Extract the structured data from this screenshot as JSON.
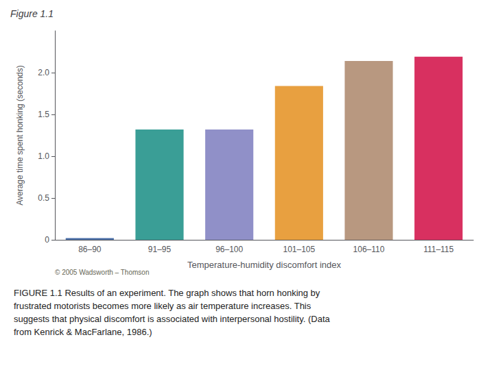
{
  "chart_data": {
    "type": "bar",
    "title": "Figure 1.1",
    "categories": [
      "86–90",
      "91–95",
      "96–100",
      "101–105",
      "106–110",
      "111–115"
    ],
    "values": [
      0.02,
      1.32,
      1.32,
      1.84,
      2.14,
      2.19
    ],
    "colors": [
      "#4a6fa8",
      "#3a9e96",
      "#9090c8",
      "#e8a040",
      "#b89880",
      "#d83060"
    ],
    "xlabel": "Temperature-humidity discomfort index",
    "ylabel": "Average time spent honking (seconds)",
    "ylim": [
      0,
      2.5
    ],
    "yticks": [
      0,
      0.5,
      {
        "value": 1,
        "label": "1.0"
      },
      1.5,
      {
        "value": 2,
        "label": "2.0"
      }
    ],
    "grid": false,
    "annotations": [
      "© 2005 Wadsworth – Thomson",
      "FIGURE 1.1 Results of an experiment. The graph shows that horn honking by\nfrustrated motorists becomes more likely as air temperature increases. This\nsuggests that physical discomfort is associated with interpersonal hostility. (Data\nfrom Kenrick & MacFarlane, 1986.)"
    ]
  }
}
